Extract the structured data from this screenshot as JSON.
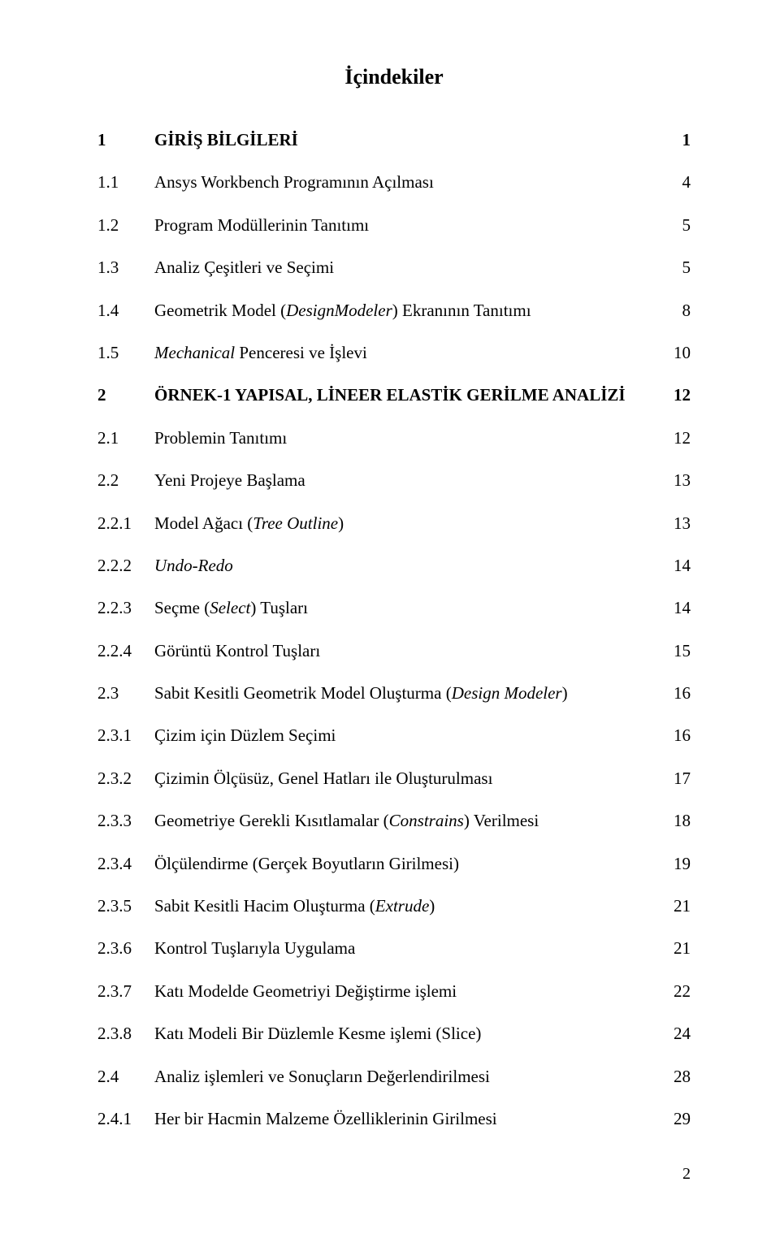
{
  "title": "İçindekiler",
  "footer_page": "2",
  "rows": [
    {
      "num": "1",
      "label": "GİRİŞ BİLGİLERİ",
      "page": "1",
      "num_bold": true,
      "label_bold": true,
      "page_bold": true,
      "gap": false
    },
    {
      "num": "1.1",
      "label": "Ansys Workbench Programının Açılması",
      "page": "4",
      "gap": false
    },
    {
      "num": "1.2",
      "label": "Program Modüllerinin Tanıtımı",
      "page": "5",
      "gap": false
    },
    {
      "num": "1.3",
      "label": "Analiz Çeşitleri ve Seçimi",
      "page": "5",
      "gap": false
    },
    {
      "num": "1.4",
      "label_pre": "Geometrik Model (",
      "label_it": "DesignModeler",
      "label_post": ") Ekranının Tanıtımı",
      "page": "8",
      "gap": false
    },
    {
      "num": "1.5",
      "label_pre": "",
      "label_it": "Mechanical",
      "label_post": " Penceresi ve İşlevi",
      "page": "10",
      "gap": false
    },
    {
      "num": "2",
      "label": "ÖRNEK-1 YAPISAL, LİNEER ELASTİK GERİLME ANALİZİ",
      "page": "12",
      "num_bold": true,
      "label_bold": true,
      "page_bold": true,
      "gap": true
    },
    {
      "num": "2.1",
      "label": "Problemin Tanıtımı",
      "page": "12",
      "gap": false
    },
    {
      "num": "2.2",
      "label": "Yeni Projeye Başlama",
      "page": "13",
      "gap": false
    },
    {
      "num": "2.2.1",
      "label_pre": "Model Ağacı (",
      "label_it": "Tree Outline",
      "label_post": ")",
      "page": "13",
      "gap": false
    },
    {
      "num": "2.2.2",
      "label_it": "Undo-Redo",
      "page": "14",
      "gap": false
    },
    {
      "num": "2.2.3",
      "label_pre": "Seçme (",
      "label_it": "Select",
      "label_post": ") Tuşları",
      "page": "14",
      "gap": false
    },
    {
      "num": "2.2.4",
      "label": "Görüntü Kontrol Tuşları",
      "page": "15",
      "gap": false
    },
    {
      "num": "2.3",
      "label_pre": "Sabit Kesitli Geometrik Model Oluşturma (",
      "label_it": "Design Modeler",
      "label_post": ")",
      "page": "16",
      "gap": false
    },
    {
      "num": "2.3.1",
      "label": "Çizim için Düzlem Seçimi",
      "page": "16",
      "gap": false
    },
    {
      "num": "2.3.2",
      "label": "Çizimin Ölçüsüz, Genel Hatları ile Oluşturulması",
      "page": "17",
      "gap": false
    },
    {
      "num": "2.3.3",
      "label_pre": "Geometriye Gerekli Kısıtlamalar (",
      "label_it": "Constrains",
      "label_post": ") Verilmesi",
      "page": "18",
      "gap": false
    },
    {
      "num": "2.3.4",
      "label": "Ölçülendirme (Gerçek Boyutların Girilmesi)",
      "page": "19",
      "gap": false
    },
    {
      "num": "2.3.5",
      "label_pre": "Sabit Kesitli Hacim Oluşturma (",
      "label_it": "Extrude",
      "label_post": ")",
      "page": "21",
      "gap": false
    },
    {
      "num": "2.3.6",
      "label": "Kontrol Tuşlarıyla Uygulama",
      "page": "21",
      "gap": false
    },
    {
      "num": "2.3.7",
      "label": "Katı Modelde Geometriyi Değiştirme işlemi",
      "page": "22",
      "gap": false
    },
    {
      "num": "2.3.8",
      "label": "Katı Modeli Bir Düzlemle Kesme işlemi (Slice)",
      "page": "24",
      "gap": false
    },
    {
      "num": "2.4",
      "label": "Analiz işlemleri ve Sonuçların Değerlendirilmesi",
      "page": "28",
      "gap": false
    },
    {
      "num": "2.4.1",
      "label": "Her bir Hacmin Malzeme Özelliklerinin Girilmesi",
      "page": "29",
      "gap": false
    }
  ]
}
